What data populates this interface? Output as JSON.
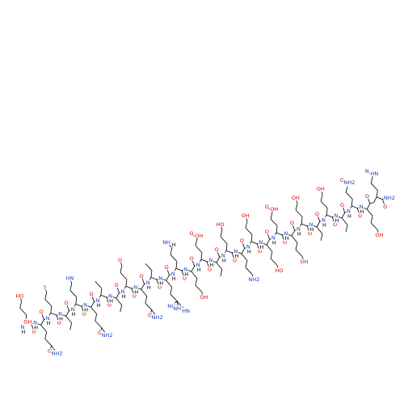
{
  "molecule": {
    "residues": [
      {
        "side": [
          "HO"
        ],
        "carbonyl": "O",
        "carboxyl": "OH",
        "amide": "N",
        "amide_h": "H"
      },
      {
        "side": [
          "O",
          "NH2"
        ],
        "carbonyl": "O",
        "amide": "N",
        "amide_h": "H"
      },
      {
        "side": [
          "S"
        ],
        "carbonyl": "O",
        "amide": "N",
        "amide_h": "H"
      },
      {
        "side": [],
        "carbonyl": "O",
        "amide": "N",
        "amide_h": "H"
      },
      {
        "side": [
          "HN"
        ],
        "carbonyl": "O",
        "amide": "N",
        "amide_h": "H"
      },
      {
        "side": [
          "O",
          "NH2"
        ],
        "carbonyl": "O",
        "amide": "N",
        "amide_h": "H"
      },
      {
        "side": [],
        "carbonyl": "O",
        "amide": "N",
        "amide_h": "H"
      },
      {
        "side": [],
        "carbonyl": "O",
        "amide": "N",
        "amide_h": "H"
      },
      {
        "side": [
          "O"
        ],
        "carbonyl": "O",
        "amide": "N",
        "amide_h": "H"
      },
      {
        "side": [
          "O",
          "NH2"
        ],
        "carbonyl": "O",
        "amide": "N",
        "amide_h": "H"
      },
      {
        "side": [],
        "carbonyl": "O",
        "amide": "N",
        "amide_h": "H"
      },
      {
        "side": [
          "NH",
          "NH2",
          "HN"
        ],
        "carbonyl": "O",
        "amide": "N",
        "amide_h": "H"
      },
      {
        "side": [
          "NH",
          "H"
        ],
        "carbonyl": "O",
        "amide": "N",
        "amide_h": "H"
      },
      {
        "side": [
          "OH"
        ],
        "carbonyl": "O",
        "amide": "N",
        "amide_h": "H"
      },
      {
        "side": [
          "O",
          "OH"
        ],
        "carbonyl": "O",
        "amide": "N",
        "amide_h": "H"
      },
      {
        "side": [],
        "carbonyl": "O",
        "amide": "N",
        "amide_h": "H"
      },
      {
        "side": [
          "HO"
        ],
        "carbonyl": "O",
        "amide": "N",
        "amide_h": "H"
      },
      {
        "side": [
          "NH2"
        ],
        "carbonyl": "O",
        "amide": "N",
        "amide_h": "H"
      },
      {
        "side": [
          "OH"
        ],
        "carbonyl": "O",
        "amide": "N",
        "amide_h": "H"
      },
      {
        "side": [
          "HO"
        ],
        "carbonyl": "O",
        "amide": "N",
        "amide_h": "H"
      },
      {
        "side": [
          "O",
          "OH"
        ],
        "carbonyl": "O",
        "amide": "N",
        "amide_h": "H"
      },
      {
        "side": [
          "OH"
        ],
        "carbonyl": "O",
        "amide": "N",
        "amide_h": "H"
      },
      {
        "side": [
          "OH"
        ],
        "carbonyl": "O",
        "amide": "N",
        "amide_h": "H"
      },
      {
        "side": [],
        "carbonyl": "O",
        "amide": "N",
        "amide_h": "H"
      },
      {
        "side": [
          "OH"
        ],
        "carbonyl": "O",
        "amide": "N",
        "amide_h": "H"
      },
      {
        "side": [],
        "carbonyl": "O",
        "amide": "N",
        "amide_h": "H"
      },
      {
        "side": [
          "O",
          "NH2"
        ],
        "carbonyl": "O",
        "amide": "N",
        "amide_h": "H"
      },
      {
        "side": [
          "OH"
        ],
        "carbonyl": "O",
        "amide": "N",
        "amide_h": "H"
      },
      {
        "side": [
          "N",
          "HN"
        ],
        "carbonyl": "O",
        "amine": "NH2"
      }
    ]
  }
}
